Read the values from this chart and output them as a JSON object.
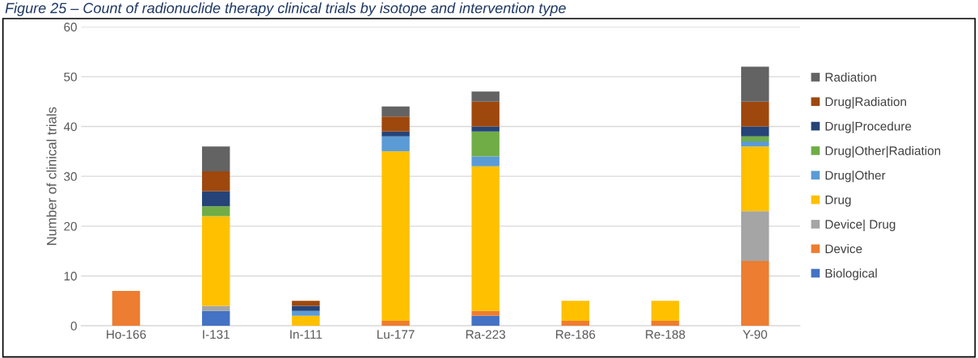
{
  "chart_data": {
    "type": "bar",
    "stacked": true,
    "title": "Figure 25 – Count of radionuclide therapy clinical trials by isotope and intervention type",
    "ylabel": "Number of clinical trials",
    "categories": [
      "Ho-166",
      "I-131",
      "In-111",
      "Lu-177",
      "Ra-223",
      "Re-186",
      "Re-188",
      "Y-90"
    ],
    "series": [
      {
        "name": "Biological",
        "color": "#4472c4",
        "values": [
          0,
          3,
          0,
          0,
          2,
          0,
          0,
          0
        ]
      },
      {
        "name": "Device",
        "color": "#ed7d31",
        "values": [
          7,
          0,
          0,
          1,
          1,
          1,
          1,
          13
        ]
      },
      {
        "name": "Device| Drug",
        "color": "#a5a5a5",
        "values": [
          0,
          1,
          0,
          0,
          0,
          0,
          0,
          10
        ]
      },
      {
        "name": "Drug",
        "color": "#ffc000",
        "values": [
          0,
          18,
          2,
          34,
          29,
          4,
          4,
          13
        ]
      },
      {
        "name": "Drug|Other",
        "color": "#5b9bd5",
        "values": [
          0,
          0,
          1,
          3,
          2,
          0,
          0,
          1
        ]
      },
      {
        "name": "Drug|Other|Radiation",
        "color": "#70ad47",
        "values": [
          0,
          2,
          0,
          0,
          5,
          0,
          0,
          1
        ]
      },
      {
        "name": "Drug|Procedure",
        "color": "#264478",
        "values": [
          0,
          3,
          1,
          1,
          1,
          0,
          0,
          2
        ]
      },
      {
        "name": "Drug|Radiation",
        "color": "#9e480e",
        "values": [
          0,
          4,
          1,
          3,
          5,
          0,
          0,
          5
        ]
      },
      {
        "name": "Radiation",
        "color": "#636363",
        "values": [
          0,
          5,
          0,
          2,
          2,
          0,
          0,
          7
        ]
      }
    ],
    "ylim": [
      0,
      60
    ],
    "yticks": [
      0,
      10,
      20,
      30,
      40,
      50,
      60
    ],
    "grid": "y",
    "legend": "right"
  }
}
